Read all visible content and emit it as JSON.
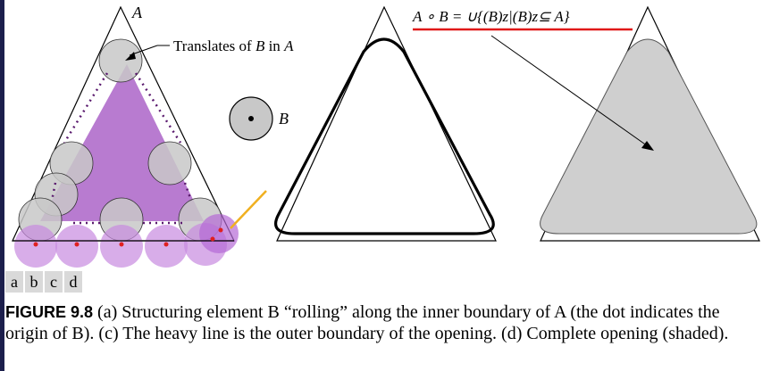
{
  "figure": {
    "label_A": "A",
    "label_B": "B",
    "translates_label_prefix": "Translates of ",
    "translates_label_B": "B",
    "translates_label_in": " in ",
    "translates_label_A": "A",
    "formula": "A ∘ B = ∪{(B)z|(B)z⊆ A}",
    "colors": {
      "highlight_purple": "#a04fc0",
      "disk_purple": "#c78ae0",
      "disk_gray": "#c8c8c8",
      "origin_dot": "#e02020",
      "formula_underline": "#e01818",
      "arrow_orange": "#f0b020",
      "shaded_opening": "#cfcfcf"
    }
  },
  "panel_labels": [
    "a",
    "b",
    "c",
    "d"
  ],
  "caption": {
    "fig_num": "FIGURE 9.8",
    "text": " (a) Structuring element B “rolling” along the inner boundary of A (the dot indicates the origin of B). (c) The heavy line is the outer boundary of the opening. (d) Complete opening (shaded)."
  }
}
